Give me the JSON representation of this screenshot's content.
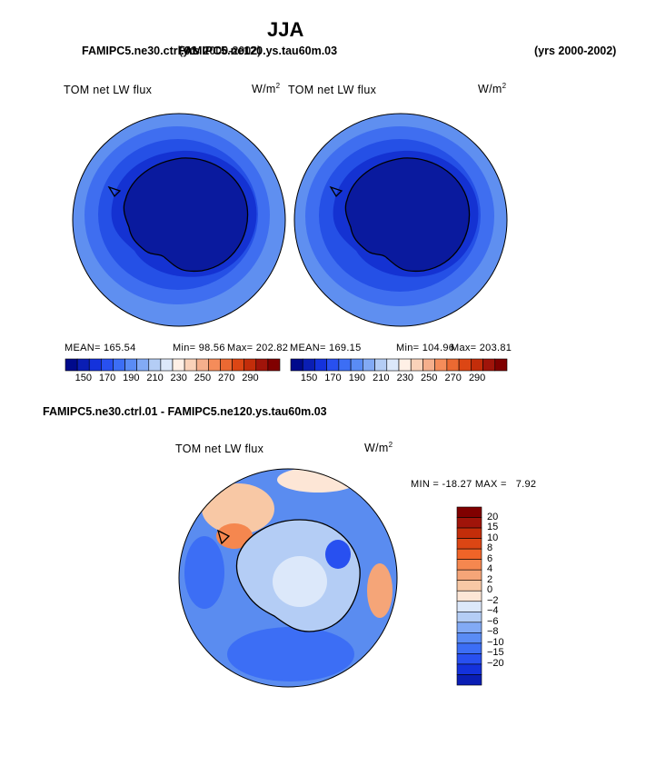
{
  "season": "JJA",
  "case_a": "FAMIPC5.ne30.ctrl.01",
  "case_b": "FAMIPC5.ne120.ys.tau60m.03",
  "case_b_years": "(yrs 2000-2002)",
  "years_right": "(yrs 2000-2002)",
  "plots": {
    "left": {
      "title": "TOM net LW flux",
      "units": "W/m",
      "units_sup": "2",
      "mean_label": "MEAN= 165.54",
      "min_label": "Min= 98.56",
      "max_label": "Max= 202.82"
    },
    "right": {
      "title": "TOM net LW flux",
      "units": "W/m",
      "units_sup": "2",
      "mean_label": "MEAN= 169.15",
      "min_label": "Min= 104.96",
      "max_label": "Max= 203.81"
    },
    "diff": {
      "title": "FAMIPC5.ne30.ctrl.01 - FAMIPC5.ne120.ys.tau60m.03",
      "panel_title": "TOM net LW flux",
      "units": "W/m",
      "units_sup": "2",
      "minmax_label": "MIN = -18.27 MAX =   7.92"
    }
  },
  "horizontal_colorbar": {
    "tick_labels": [
      "150",
      "170",
      "190",
      "210",
      "230",
      "250",
      "270",
      "290"
    ],
    "colors": [
      "#000a8c",
      "#0a1eb4",
      "#1432dc",
      "#2850f0",
      "#3c6ef5",
      "#5a8cf5",
      "#82aaf5",
      "#b4cdf5",
      "#dce8fa",
      "#fff0e6",
      "#fad2b9",
      "#f5af8c",
      "#f58c5a",
      "#eb6932",
      "#dc4614",
      "#c32d0a",
      "#a0140a",
      "#800000"
    ]
  },
  "vertical_colorbar": {
    "tick_labels": [
      "20",
      "15",
      "10",
      "8",
      "6",
      "4",
      "2",
      "0",
      "−2",
      "−4",
      "−6",
      "−8",
      "−10",
      "−15",
      "−20"
    ],
    "colors": [
      "#800000",
      "#a0140a",
      "#c32d0a",
      "#dc4614",
      "#f06428",
      "#f5874f",
      "#f5a578",
      "#f8c8a5",
      "#fde6d6",
      "#dce8fa",
      "#b4cdf5",
      "#82aaf5",
      "#5a8cf5",
      "#3c6ef5",
      "#2850f0",
      "#1432dc",
      "#0a1eb4"
    ]
  },
  "map_colors": {
    "ocean_outer": "#5f8ff0",
    "ocean_mid": "#3f6ef0",
    "ice_ring": "#2550e6",
    "coast_ring": "#1432d2",
    "continent": "#0a1a9e",
    "diff_base": "#5a8cf0"
  }
}
